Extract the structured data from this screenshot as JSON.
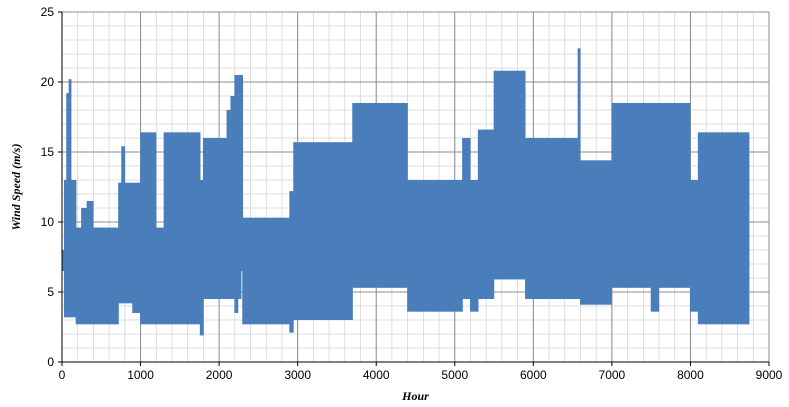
{
  "chart_data": {
    "type": "area",
    "title": "",
    "xlabel": "Hour",
    "ylabel": "Wind Speed (m/s)",
    "xlim": [
      0,
      9000
    ],
    "ylim": [
      0,
      25
    ],
    "x_ticks": [
      0,
      1000,
      2000,
      3000,
      4000,
      5000,
      6000,
      7000,
      8000,
      9000
    ],
    "y_ticks": [
      0,
      5,
      10,
      15,
      20,
      25
    ],
    "x_tick_labels": [
      "0",
      "1000",
      "2000",
      "3000",
      "4000",
      "5000",
      "6000",
      "7000",
      "8000",
      "9000"
    ],
    "y_tick_labels": [
      "0",
      "5",
      "10",
      "15",
      "20",
      "25"
    ],
    "grid": true,
    "minor_grid": true,
    "legend": "none",
    "series_color": "#4a7ebb",
    "series": [
      {
        "name": "",
        "note": "hourly wind speed plotted as a dense oscillating line; envelope sampled",
        "x": [
          0,
          30,
          60,
          90,
          120,
          180,
          250,
          320,
          400,
          480,
          560,
          640,
          720,
          760,
          800,
          900,
          1000,
          1100,
          1200,
          1300,
          1400,
          1500,
          1600,
          1700,
          1760,
          1800,
          1900,
          2000,
          2100,
          2150,
          2200,
          2240,
          2280,
          2300,
          2500,
          2700,
          2900,
          2950,
          3000,
          3300,
          3600,
          3700,
          3900,
          4100,
          4300,
          4400,
          4600,
          4800,
          5000,
          5100,
          5200,
          5300,
          5400,
          5500,
          5700,
          5850,
          5900,
          6100,
          6300,
          6500,
          6570,
          6600,
          6700,
          6900,
          7000,
          7100,
          7300,
          7500,
          7600,
          7800,
          7900,
          8000,
          8100,
          8200,
          8300,
          8400,
          8500,
          8600,
          8700,
          8750
        ],
        "y_max": [
          8,
          13,
          19.2,
          20.2,
          13,
          9.6,
          11,
          11.5,
          9.6,
          9.6,
          9.6,
          9.6,
          12.8,
          15.4,
          12.8,
          12.8,
          16.4,
          16.4,
          9.6,
          16.4,
          16.4,
          16.4,
          16.4,
          16.4,
          13,
          16,
          16,
          16,
          18,
          19,
          20.5,
          20.5,
          20.5,
          10.3,
          10.3,
          10.3,
          12.2,
          15.7,
          15.7,
          15.7,
          15.7,
          18.5,
          18.5,
          18.5,
          18.5,
          13,
          13,
          13,
          13,
          16,
          13,
          16.6,
          16.6,
          20.8,
          20.8,
          20.8,
          16,
          16,
          16,
          16,
          22.4,
          14.4,
          14.4,
          14.4,
          18.5,
          18.5,
          18.5,
          18.5,
          18.5,
          18.5,
          18.5,
          13,
          16.4,
          16.4,
          16.4,
          16.4,
          16.4,
          16.4,
          16.4,
          8
        ],
        "y_min": [
          6.5,
          3.2,
          3.2,
          3.2,
          3.2,
          2.7,
          2.7,
          2.7,
          2.7,
          2.7,
          2.7,
          2.7,
          4.2,
          4.2,
          4.2,
          3.5,
          2.7,
          2.7,
          2.7,
          2.7,
          2.7,
          2.7,
          2.7,
          2.7,
          1.9,
          4.5,
          4.5,
          4.5,
          4.5,
          4.5,
          3.5,
          4.5,
          6.5,
          2.7,
          2.7,
          2.7,
          2.1,
          3,
          3,
          3,
          3,
          5.3,
          5.3,
          5.3,
          5.3,
          3.6,
          3.6,
          3.6,
          3.6,
          4.5,
          3.6,
          4.5,
          4.5,
          5.9,
          5.9,
          5.9,
          4.5,
          4.5,
          4.5,
          4.5,
          4.5,
          4.1,
          4.1,
          4.1,
          5.3,
          5.3,
          5.3,
          3.6,
          5.3,
          5.3,
          5.3,
          3.6,
          2.7,
          2.7,
          2.7,
          2.7,
          2.7,
          2.7,
          2.7,
          6.5
        ]
      }
    ]
  }
}
